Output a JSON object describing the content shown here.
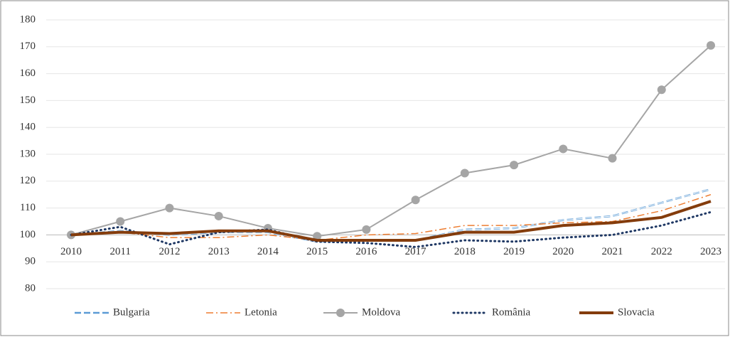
{
  "chart_data": {
    "type": "line",
    "categories": [
      "2010",
      "2011",
      "2012",
      "2013",
      "2014",
      "2015",
      "2016",
      "2017",
      "2018",
      "2019",
      "2020",
      "2021",
      "2022",
      "2023"
    ],
    "series": [
      {
        "name": "Bulgaria",
        "color": "#5b9bd5",
        "line_style": "double-dashed",
        "values": [
          100,
          101.5,
          100,
          101,
          101,
          97.5,
          98,
          98,
          102,
          102.5,
          105.5,
          107,
          112,
          117
        ]
      },
      {
        "name": "Letonia",
        "color": "#ed7d31",
        "line_style": "dash-dot",
        "values": [
          100,
          101,
          99,
          99,
          100,
          98,
          100,
          100.5,
          103.5,
          103.5,
          104.5,
          105,
          109,
          115
        ]
      },
      {
        "name": "Moldova",
        "color": "#a5a5a5",
        "line_style": "solid",
        "marker": "circle",
        "values": [
          100,
          105,
          110,
          107,
          102.5,
          99.5,
          102,
          113,
          123,
          126,
          132,
          128.5,
          154,
          170.5
        ]
      },
      {
        "name": "România",
        "color": "#1f3864",
        "line_style": "dotted",
        "values": [
          100,
          103,
          96.5,
          101,
          102,
          97.5,
          97,
          95.5,
          98,
          97.5,
          99,
          100,
          103.5,
          108.5
        ]
      },
      {
        "name": "Slovacia",
        "color": "#843c0c",
        "line_style": "thick",
        "values": [
          100,
          101,
          100.5,
          101.5,
          101.5,
          98,
          98,
          98,
          101,
          101,
          103.5,
          104.5,
          106.5,
          112.5
        ]
      }
    ],
    "ylim": [
      80,
      180
    ],
    "yticks": [
      80,
      90,
      100,
      110,
      120,
      130,
      140,
      150,
      160,
      170,
      180
    ],
    "x_axis_crosses": 100,
    "grid": true,
    "legend": "bottom"
  }
}
